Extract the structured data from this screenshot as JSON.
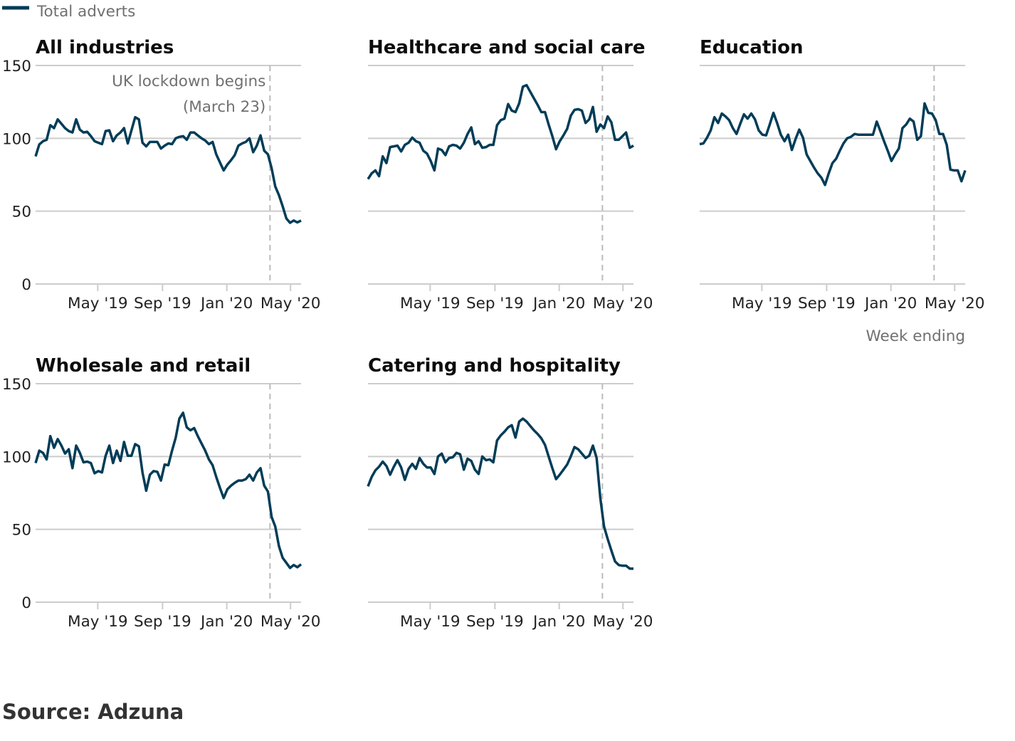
{
  "legend": {
    "label": "Total adverts",
    "color": "#003c57"
  },
  "x_axis_label": "Week ending",
  "source": "Source: Adzuna",
  "annotation": {
    "line1": "UK lockdown begins",
    "line2": "(March 23)",
    "date": "2020-03-23"
  },
  "colors": {
    "line": "#003c57",
    "grid": "#cccccc",
    "annotation_line": "#bbbbbb"
  },
  "shared": {
    "dates": [
      "2019-01-03",
      "2019-01-10",
      "2019-01-17",
      "2019-01-24",
      "2019-01-31",
      "2019-02-07",
      "2019-02-14",
      "2019-02-21",
      "2019-02-28",
      "2019-03-07",
      "2019-03-14",
      "2019-03-21",
      "2019-03-28",
      "2019-04-04",
      "2019-04-11",
      "2019-04-18",
      "2019-04-25",
      "2019-05-02",
      "2019-05-09",
      "2019-05-16",
      "2019-05-23",
      "2019-05-30",
      "2019-06-06",
      "2019-06-13",
      "2019-06-20",
      "2019-06-27",
      "2019-07-04",
      "2019-07-11",
      "2019-07-18",
      "2019-07-25",
      "2019-08-01",
      "2019-08-08",
      "2019-08-15",
      "2019-08-22",
      "2019-08-29",
      "2019-09-05",
      "2019-09-12",
      "2019-09-19",
      "2019-09-26",
      "2019-10-03",
      "2019-10-10",
      "2019-10-17",
      "2019-10-24",
      "2019-10-31",
      "2019-11-07",
      "2019-11-14",
      "2019-11-21",
      "2019-11-28",
      "2019-12-05",
      "2019-12-12",
      "2019-12-19",
      "2019-12-26",
      "2020-01-02",
      "2020-01-09",
      "2020-01-16",
      "2020-01-23",
      "2020-01-30",
      "2020-02-06",
      "2020-02-13",
      "2020-02-20",
      "2020-02-27",
      "2020-03-05",
      "2020-03-12",
      "2020-03-19",
      "2020-03-26",
      "2020-04-02",
      "2020-04-09",
      "2020-04-16",
      "2020-04-23",
      "2020-04-30",
      "2020-05-07",
      "2020-05-14",
      "2020-05-21"
    ],
    "xlim": [
      "2019-01-03",
      "2020-05-21"
    ],
    "ylim": [
      0,
      150
    ],
    "yticks": [
      0,
      50,
      100,
      150
    ],
    "xticks": [
      {
        "date": "2019-05-01",
        "label": "May '19"
      },
      {
        "date": "2019-09-01",
        "label": "Sep '19"
      },
      {
        "date": "2020-01-01",
        "label": "Jan '20"
      },
      {
        "date": "2020-05-01",
        "label": "May '20"
      }
    ],
    "grid": true
  },
  "chart_data": [
    {
      "type": "line",
      "title": "All industries",
      "series": [
        {
          "name": "Total adverts",
          "values": [
            87.6,
            95.8,
            98,
            99,
            109,
            107,
            113,
            110,
            107,
            105,
            104,
            113,
            106,
            104,
            104.5,
            101.5,
            98,
            97,
            96,
            105,
            105.5,
            98,
            102,
            104,
            107,
            96.5,
            105.5,
            114.5,
            113,
            97,
            94.5,
            97.5,
            97.5,
            97.5,
            93,
            95,
            96.5,
            96,
            100,
            101,
            101.5,
            99,
            104,
            104,
            102,
            100,
            98.5,
            96,
            97.5,
            89,
            83.5,
            78,
            82,
            85,
            88.5,
            95,
            96.5,
            97.5,
            100,
            90.5,
            95,
            102,
            91.5,
            89,
            79.5,
            67,
            61,
            53.4,
            45,
            42,
            43.6,
            42.3,
            43.6
          ]
        }
      ]
    },
    {
      "type": "line",
      "title": "Healthcare and social care",
      "series": [
        {
          "name": "Total adverts",
          "values": [
            72,
            76,
            78,
            74,
            87.6,
            83,
            94,
            94.5,
            95,
            91,
            95.5,
            97,
            100.5,
            98,
            97,
            91.5,
            89.5,
            84.5,
            78,
            93,
            92,
            88.5,
            94.5,
            95.5,
            95,
            93,
            97,
            103,
            107.5,
            96,
            98,
            93.5,
            94,
            95.5,
            95.5,
            109,
            112.5,
            113.5,
            123.5,
            119,
            118,
            124,
            135.5,
            136.5,
            132,
            127.5,
            123,
            118,
            118,
            109.5,
            101.5,
            92.5,
            98,
            102,
            106.5,
            115.5,
            119.5,
            120,
            119,
            110.5,
            113,
            121.5,
            104.5,
            109.5,
            107,
            115,
            111,
            99,
            99,
            101.5,
            104,
            93.5,
            95
          ]
        }
      ]
    },
    {
      "type": "line",
      "title": "Education",
      "series": [
        {
          "name": "Total adverts",
          "values": [
            96,
            96.5,
            100.5,
            105.5,
            114.5,
            110.5,
            117,
            115,
            112.5,
            107,
            103,
            110,
            116.5,
            113.5,
            117,
            113,
            105.5,
            102.5,
            102,
            109.5,
            117.5,
            110.5,
            102.5,
            98,
            102.5,
            92,
            99.5,
            106,
            100.5,
            89,
            84.5,
            80,
            76,
            73,
            68,
            76,
            83,
            86,
            91.5,
            96.5,
            100,
            101,
            103,
            102.5,
            102.5,
            102.5,
            102.5,
            102.5,
            111.5,
            105,
            98,
            91.5,
            84.5,
            89,
            93,
            107,
            109.5,
            113.5,
            111.5,
            99,
            101.5,
            124,
            117.5,
            117,
            112.5,
            103,
            103,
            95.5,
            78.5,
            78,
            78,
            70.5,
            78
          ]
        }
      ]
    },
    {
      "type": "line",
      "title": "Wholesale and retail",
      "series": [
        {
          "name": "Total adverts",
          "values": [
            95.5,
            104,
            102.5,
            98,
            114,
            106,
            112,
            107.5,
            102,
            105,
            92,
            107.5,
            102.5,
            96,
            96.5,
            95.5,
            88.5,
            90,
            89,
            100.5,
            107.5,
            95.5,
            104,
            97,
            110,
            100.5,
            100.5,
            108.5,
            107,
            89,
            76.5,
            87.5,
            90,
            89.5,
            83.5,
            94.5,
            94,
            104,
            113,
            126,
            130,
            120,
            118,
            119.5,
            114,
            109,
            104,
            98,
            94,
            86,
            78.5,
            71.5,
            77.5,
            80,
            82,
            83.5,
            83.5,
            84.5,
            87.5,
            83.5,
            89,
            92,
            80,
            76,
            58.5,
            52,
            38.5,
            30.5,
            27,
            23.5,
            25.5,
            24,
            26
          ]
        }
      ]
    },
    {
      "type": "line",
      "title": "Catering and hospitality",
      "series": [
        {
          "name": "Total adverts",
          "values": [
            79.5,
            86,
            90.5,
            93,
            96.5,
            93.5,
            87.5,
            93,
            97.5,
            92.5,
            84,
            91.5,
            95,
            91.5,
            99,
            95,
            92.5,
            92.5,
            88,
            100,
            102,
            96,
            99,
            99.5,
            102.5,
            101.5,
            91,
            98.5,
            97,
            91,
            88,
            100,
            97.5,
            98,
            96,
            111,
            114.5,
            117,
            120,
            121.5,
            113,
            124,
            126,
            124,
            121,
            118,
            115.5,
            112.5,
            108,
            100,
            92,
            84.5,
            87.5,
            91,
            94.5,
            100,
            106.5,
            105,
            102,
            99,
            100.5,
            107.5,
            99,
            71.5,
            52,
            43.5,
            35.5,
            28,
            25.5,
            25,
            25,
            23,
            23
          ]
        }
      ]
    }
  ]
}
